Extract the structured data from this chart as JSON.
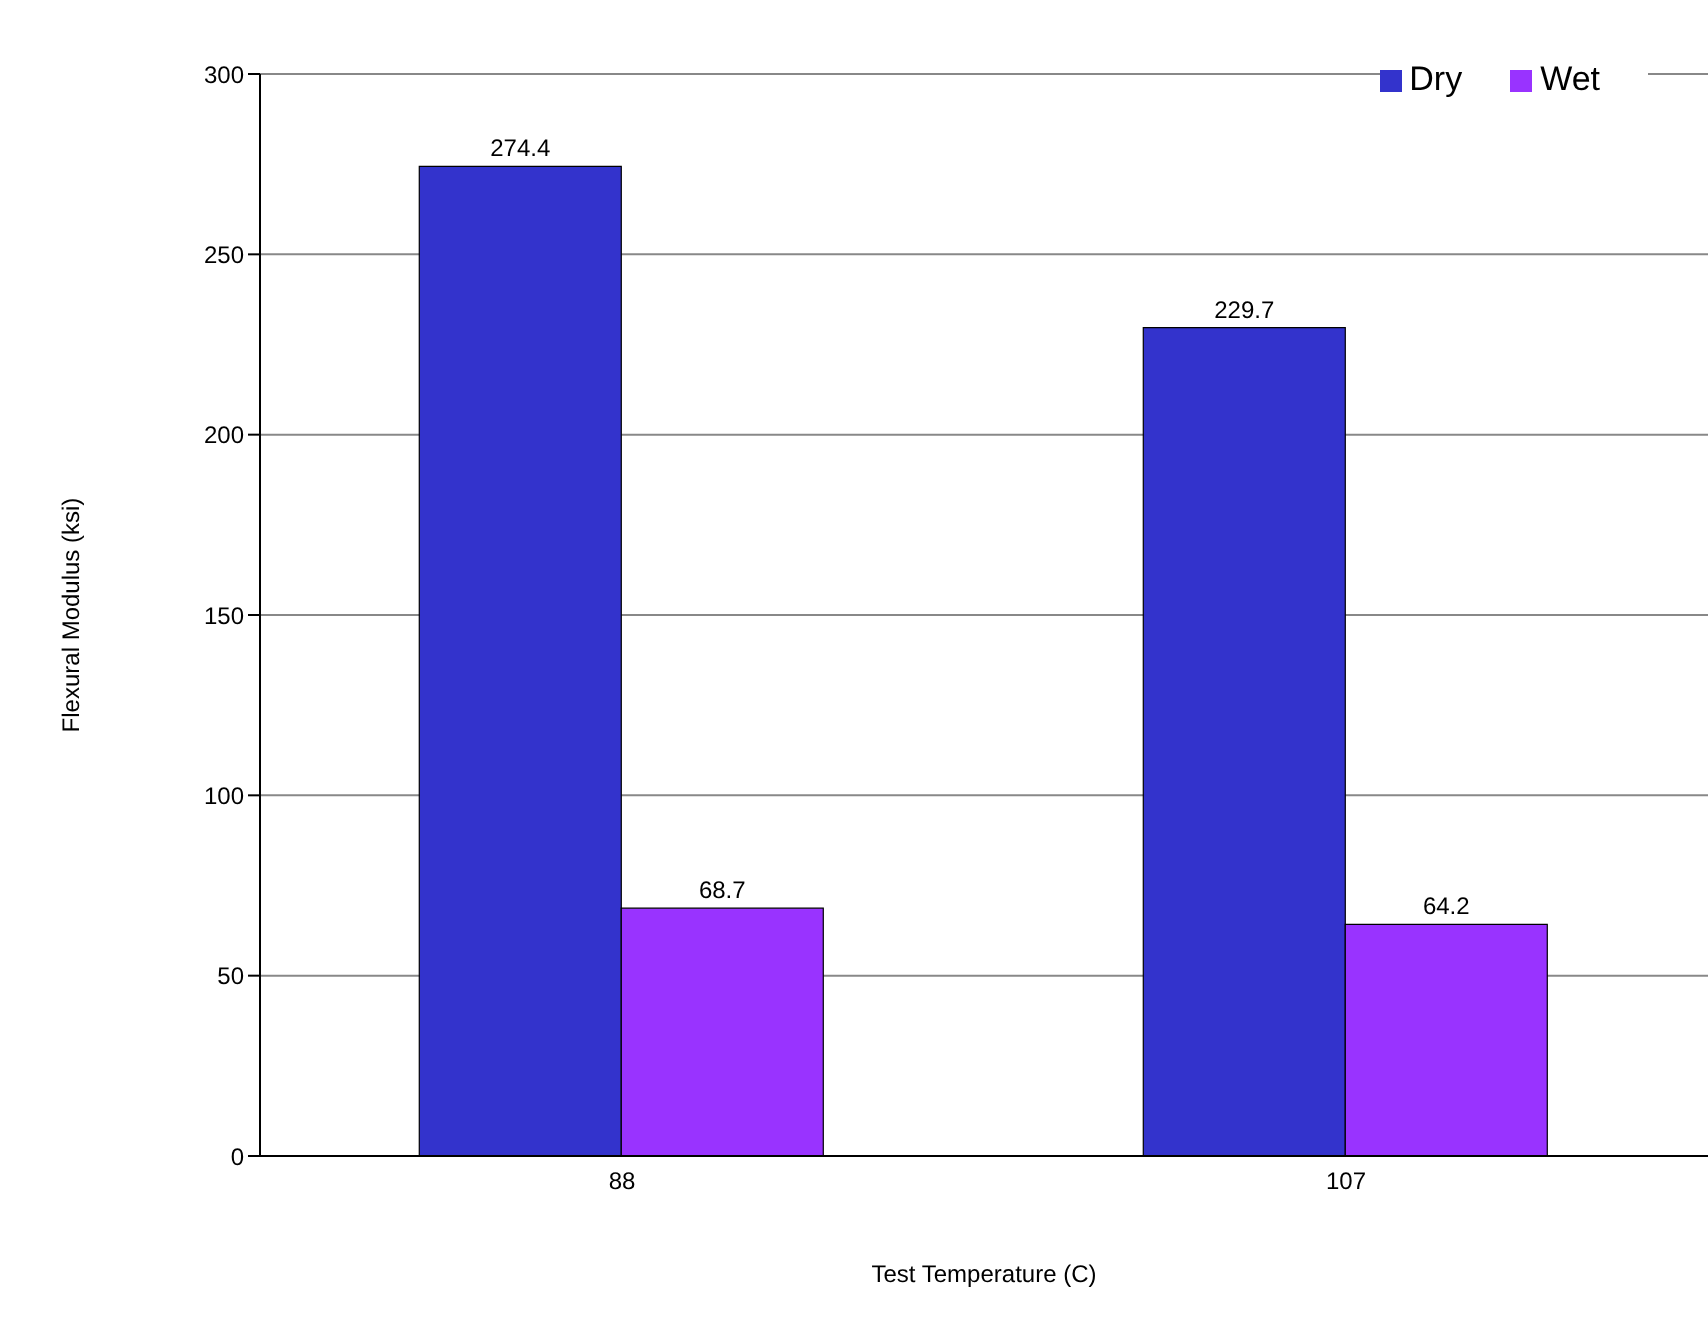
{
  "chart_data": {
    "type": "bar",
    "xlabel": "Test Temperature (C)",
    "ylabel": "Flexural Modulus (ksi)",
    "categories": [
      "88",
      "107"
    ],
    "series": [
      {
        "name": "Dry",
        "color": "#3333cc",
        "values": [
          274.4,
          229.7
        ]
      },
      {
        "name": "Wet",
        "color": "#9933ff",
        "values": [
          68.7,
          64.2
        ]
      }
    ],
    "ylim": [
      0,
      300
    ],
    "yticks": [
      0,
      50,
      100,
      150,
      200,
      250,
      300
    ],
    "grid": "y",
    "legend": "top right",
    "data_labels": true
  }
}
